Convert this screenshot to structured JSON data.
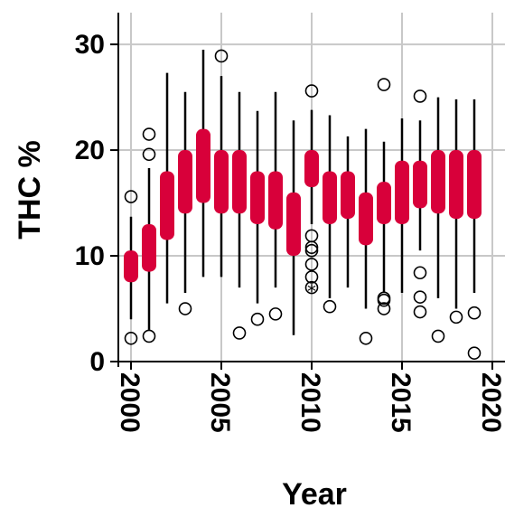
{
  "chart_data": {
    "type": "box",
    "xlabel": "Year",
    "ylabel": "THC %",
    "xlim": [
      1999.3,
      2020.7
    ],
    "ylim": [
      0,
      33
    ],
    "x_ticks": [
      2000,
      2005,
      2010,
      2015,
      2020
    ],
    "y_ticks": [
      0,
      10,
      20,
      30
    ],
    "grid": true,
    "box_color": "#d8003a",
    "whisker_color": "#000000",
    "grid_color": "#c8c8c8",
    "boxes": [
      {
        "x": 2000,
        "whisker_low": 4.0,
        "q1": 7.5,
        "q3": 10.5,
        "whisker_high": 13.7,
        "outliers": [
          2.2,
          15.6
        ]
      },
      {
        "x": 2001,
        "whisker_low": 3.0,
        "q1": 8.5,
        "q3": 13.0,
        "whisker_high": 18.3,
        "outliers": [
          2.4,
          19.6,
          21.5
        ]
      },
      {
        "x": 2002,
        "whisker_low": 5.5,
        "q1": 11.5,
        "q3": 18.0,
        "whisker_high": 27.3,
        "outliers": []
      },
      {
        "x": 2003,
        "whisker_low": 6.5,
        "q1": 14.0,
        "q3": 20.0,
        "whisker_high": 25.5,
        "outliers": [
          5.0
        ]
      },
      {
        "x": 2004,
        "whisker_low": 8.0,
        "q1": 15.0,
        "q3": 22.0,
        "whisker_high": 29.5,
        "outliers": []
      },
      {
        "x": 2005,
        "whisker_low": 8.0,
        "q1": 14.0,
        "q3": 20.0,
        "whisker_high": 27.0,
        "outliers": [
          28.9
        ]
      },
      {
        "x": 2006,
        "whisker_low": 7.0,
        "q1": 14.0,
        "q3": 20.0,
        "whisker_high": 25.5,
        "outliers": [
          2.7
        ]
      },
      {
        "x": 2007,
        "whisker_low": 5.5,
        "q1": 13.0,
        "q3": 18.0,
        "whisker_high": 23.7,
        "outliers": [
          4.0
        ]
      },
      {
        "x": 2008,
        "whisker_low": 7.0,
        "q1": 12.5,
        "q3": 18.0,
        "whisker_high": 25.5,
        "outliers": [
          4.5
        ]
      },
      {
        "x": 2009,
        "whisker_low": 2.5,
        "q1": 10.0,
        "q3": 16.0,
        "whisker_high": 22.8,
        "outliers": []
      },
      {
        "x": 2010,
        "whisker_low": 13.0,
        "q1": 16.5,
        "q3": 20.0,
        "whisker_high": 23.8,
        "outliers": [
          7.0,
          8.0,
          9.2,
          10.5,
          10.8,
          11.9,
          25.6
        ]
      },
      {
        "x": 2011,
        "whisker_low": 6.0,
        "q1": 13.0,
        "q3": 18.0,
        "whisker_high": 23.3,
        "outliers": [
          5.2
        ]
      },
      {
        "x": 2012,
        "whisker_low": 7.0,
        "q1": 13.5,
        "q3": 18.0,
        "whisker_high": 21.3,
        "outliers": []
      },
      {
        "x": 2013,
        "whisker_low": 5.0,
        "q1": 11.0,
        "q3": 16.0,
        "whisker_high": 22.0,
        "outliers": [
          2.2
        ]
      },
      {
        "x": 2014,
        "whisker_low": 6.5,
        "q1": 13.0,
        "q3": 17.0,
        "whisker_high": 20.8,
        "outliers": [
          5.0,
          5.8,
          6.0,
          26.2
        ]
      },
      {
        "x": 2015,
        "whisker_low": 6.5,
        "q1": 13.0,
        "q3": 19.0,
        "whisker_high": 23.0,
        "outliers": []
      },
      {
        "x": 2016,
        "whisker_low": 10.5,
        "q1": 14.5,
        "q3": 19.0,
        "whisker_high": 22.8,
        "outliers": [
          4.7,
          6.1,
          8.4,
          25.1
        ]
      },
      {
        "x": 2017,
        "whisker_low": 6.0,
        "q1": 14.0,
        "q3": 20.0,
        "whisker_high": 25.0,
        "outliers": [
          2.4
        ]
      },
      {
        "x": 2018,
        "whisker_low": 5.0,
        "q1": 13.5,
        "q3": 20.0,
        "whisker_high": 24.8,
        "outliers": [
          4.2
        ]
      },
      {
        "x": 2019,
        "whisker_low": 6.5,
        "q1": 13.5,
        "q3": 20.0,
        "whisker_high": 24.8,
        "outliers": [
          0.8,
          4.6
        ]
      }
    ],
    "extreme_markers": [
      {
        "x": 2010,
        "y": 6.8,
        "symbol": "*"
      }
    ]
  }
}
